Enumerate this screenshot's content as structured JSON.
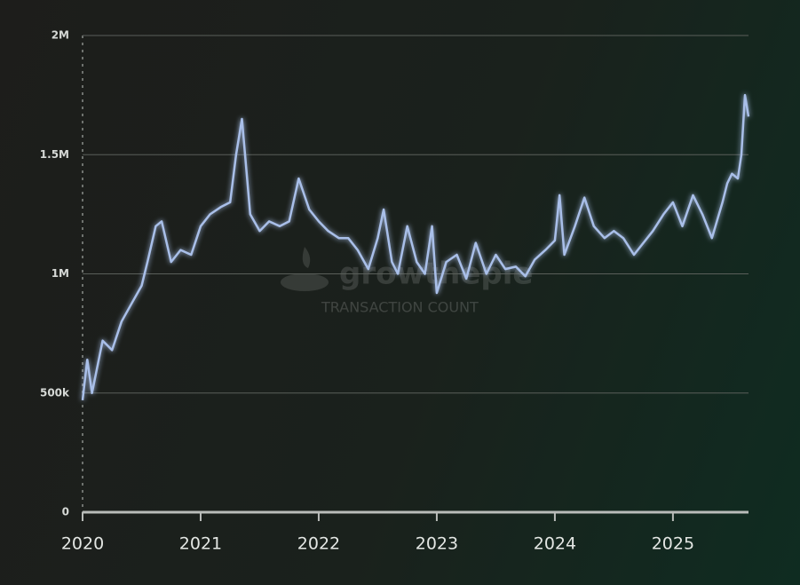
{
  "chart_data": {
    "type": "line",
    "watermark": {
      "brand": "growthepie",
      "label": "TRANSACTION COUNT"
    },
    "xlim": [
      2020,
      2025.64
    ],
    "xticks": [
      2020,
      2021,
      2022,
      2023,
      2024,
      2025
    ],
    "ylim": [
      0,
      2000000
    ],
    "yticks": [
      {
        "value": 0,
        "label": "0"
      },
      {
        "value": 500000,
        "label": "500k"
      },
      {
        "value": 1000000,
        "label": "1M"
      },
      {
        "value": 1500000,
        "label": "1.5M"
      },
      {
        "value": 2000000,
        "label": "2M"
      }
    ],
    "grid": true,
    "series": [
      {
        "color": "#a9bfe9",
        "x": [
          2020.0,
          2020.04,
          2020.08,
          2020.17,
          2020.25,
          2020.33,
          2020.42,
          2020.5,
          2020.55,
          2020.62,
          2020.67,
          2020.75,
          2020.83,
          2020.92,
          2021.0,
          2021.08,
          2021.17,
          2021.25,
          2021.3,
          2021.35,
          2021.42,
          2021.5,
          2021.58,
          2021.67,
          2021.75,
          2021.83,
          2021.92,
          2022.0,
          2022.08,
          2022.17,
          2022.25,
          2022.33,
          2022.42,
          2022.5,
          2022.55,
          2022.62,
          2022.67,
          2022.75,
          2022.83,
          2022.9,
          2022.96,
          2023.0,
          2023.08,
          2023.17,
          2023.25,
          2023.33,
          2023.42,
          2023.5,
          2023.58,
          2023.67,
          2023.75,
          2023.83,
          2023.92,
          2024.0,
          2024.04,
          2024.08,
          2024.17,
          2024.25,
          2024.33,
          2024.42,
          2024.5,
          2024.58,
          2024.67,
          2024.75,
          2024.83,
          2024.92,
          2025.0,
          2025.08,
          2025.17,
          2025.25,
          2025.33,
          2025.42,
          2025.46,
          2025.5,
          2025.55,
          2025.58,
          2025.61,
          2025.64
        ],
        "values": [
          470000,
          640000,
          500000,
          720000,
          680000,
          800000,
          880000,
          950000,
          1050000,
          1200000,
          1220000,
          1050000,
          1100000,
          1080000,
          1200000,
          1250000,
          1280000,
          1300000,
          1500000,
          1650000,
          1250000,
          1180000,
          1220000,
          1200000,
          1220000,
          1400000,
          1270000,
          1220000,
          1180000,
          1150000,
          1150000,
          1100000,
          1020000,
          1150000,
          1270000,
          1050000,
          1000000,
          1200000,
          1050000,
          1000000,
          1200000,
          920000,
          1050000,
          1080000,
          980000,
          1130000,
          1000000,
          1080000,
          1020000,
          1030000,
          990000,
          1060000,
          1100000,
          1140000,
          1330000,
          1080000,
          1200000,
          1320000,
          1200000,
          1150000,
          1180000,
          1150000,
          1080000,
          1130000,
          1180000,
          1250000,
          1300000,
          1200000,
          1330000,
          1250000,
          1150000,
          1300000,
          1380000,
          1420000,
          1400000,
          1500000,
          1750000,
          1660000
        ]
      }
    ]
  }
}
